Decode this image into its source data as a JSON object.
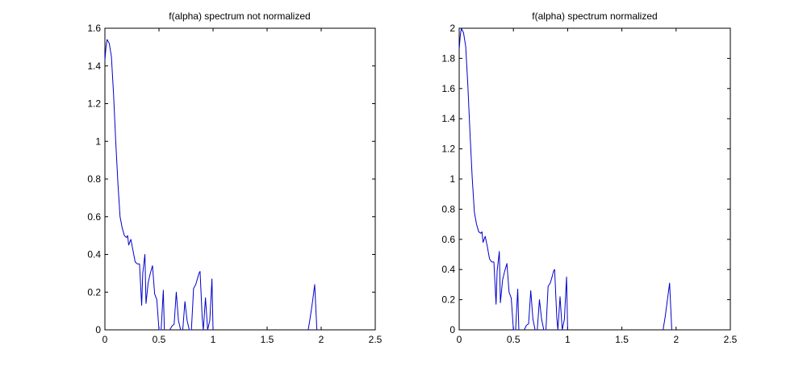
{
  "chart_data": [
    {
      "type": "line",
      "title": "f(alpha) spectrum not normalized",
      "xlabel": "",
      "ylabel": "",
      "xlim": [
        0,
        2.5
      ],
      "ylim": [
        0,
        1.6
      ],
      "xticks": [
        0,
        0.5,
        1,
        1.5,
        2,
        2.5
      ],
      "xtick_labels": [
        "0",
        "0.5",
        "1",
        "1.5",
        "2",
        "2.5"
      ],
      "yticks": [
        0,
        0.2,
        0.4,
        0.6,
        0.8,
        1,
        1.2,
        1.4,
        1.6
      ],
      "ytick_labels": [
        "0",
        "0.2",
        "0.4",
        "0.6",
        "0.8",
        "1",
        "1.2",
        "1.4",
        "1.6"
      ],
      "grid": false,
      "line_color": "#0000cc",
      "segments": [
        {
          "x": [
            0,
            0.01,
            0.02,
            0.04,
            0.06,
            0.08,
            0.1,
            0.12,
            0.14,
            0.16,
            0.18,
            0.2,
            0.21,
            0.22,
            0.24,
            0.26,
            0.28,
            0.3,
            0.32,
            0.34,
            0.35,
            0.37,
            0.38,
            0.4,
            0.42,
            0.44,
            0.46,
            0.48,
            0.5,
            0.52,
            0.54,
            0.55
          ],
          "y": [
            1.43,
            1.5,
            1.54,
            1.52,
            1.45,
            1.25,
            1.0,
            0.78,
            0.6,
            0.54,
            0.5,
            0.49,
            0.5,
            0.45,
            0.48,
            0.42,
            0.36,
            0.35,
            0.35,
            0.13,
            0.3,
            0.4,
            0.14,
            0.25,
            0.3,
            0.34,
            0.19,
            0.16,
            0.0,
            0.0,
            0.21,
            0.0
          ]
        },
        {
          "x": [
            0.6,
            0.62,
            0.64,
            0.66,
            0.68,
            0.7
          ],
          "y": [
            0.0,
            0.02,
            0.03,
            0.2,
            0.05,
            0.0
          ]
        },
        {
          "x": [
            0.72,
            0.74,
            0.76,
            0.78,
            0.8,
            0.82,
            0.84,
            0.86,
            0.87,
            0.88,
            0.9,
            0.91,
            0.93,
            0.95,
            0.97,
            0.99,
            1.0
          ],
          "y": [
            0.0,
            0.15,
            0.05,
            0.0,
            0.0,
            0.22,
            0.24,
            0.28,
            0.3,
            0.31,
            0.06,
            0.0,
            0.17,
            0.0,
            0.05,
            0.27,
            0.0
          ]
        },
        {
          "x": [
            1.88,
            1.9,
            1.92,
            1.94,
            1.96
          ],
          "y": [
            0.0,
            0.07,
            0.15,
            0.24,
            0.0
          ]
        }
      ]
    },
    {
      "type": "line",
      "title": "f(alpha) spectrum normalized",
      "xlabel": "",
      "ylabel": "",
      "xlim": [
        0,
        2.5
      ],
      "ylim": [
        0,
        2
      ],
      "xticks": [
        0,
        0.5,
        1,
        1.5,
        2,
        2.5
      ],
      "xtick_labels": [
        "0",
        "0.5",
        "1",
        "1.5",
        "2",
        "2.5"
      ],
      "yticks": [
        0,
        0.2,
        0.4,
        0.6,
        0.8,
        1,
        1.2,
        1.4,
        1.6,
        1.8,
        2
      ],
      "ytick_labels": [
        "0",
        "0.2",
        "0.4",
        "0.6",
        "0.8",
        "1",
        "1.2",
        "1.4",
        "1.6",
        "1.8",
        "2"
      ],
      "grid": false,
      "line_color": "#0000cc",
      "segments": [
        {
          "x": [
            0,
            0.01,
            0.02,
            0.04,
            0.06,
            0.08,
            0.1,
            0.12,
            0.14,
            0.16,
            0.18,
            0.2,
            0.21,
            0.22,
            0.24,
            0.26,
            0.28,
            0.3,
            0.32,
            0.34,
            0.35,
            0.37,
            0.38,
            0.4,
            0.42,
            0.44,
            0.46,
            0.48,
            0.5,
            0.52,
            0.54,
            0.55
          ],
          "y": [
            1.86,
            1.95,
            2.0,
            1.97,
            1.88,
            1.62,
            1.3,
            1.01,
            0.78,
            0.7,
            0.65,
            0.64,
            0.65,
            0.58,
            0.62,
            0.55,
            0.47,
            0.45,
            0.45,
            0.17,
            0.39,
            0.52,
            0.18,
            0.33,
            0.39,
            0.44,
            0.25,
            0.21,
            0.0,
            0.0,
            0.27,
            0.0
          ]
        },
        {
          "x": [
            0.6,
            0.62,
            0.64,
            0.66,
            0.68,
            0.7
          ],
          "y": [
            0.0,
            0.03,
            0.04,
            0.26,
            0.07,
            0.0
          ]
        },
        {
          "x": [
            0.72,
            0.74,
            0.76,
            0.78,
            0.8,
            0.82,
            0.84,
            0.86,
            0.87,
            0.88,
            0.9,
            0.91,
            0.93,
            0.95,
            0.97,
            0.99,
            1.0
          ],
          "y": [
            0.0,
            0.2,
            0.07,
            0.0,
            0.0,
            0.29,
            0.31,
            0.36,
            0.39,
            0.4,
            0.08,
            0.0,
            0.22,
            0.0,
            0.07,
            0.35,
            0.0
          ]
        },
        {
          "x": [
            1.88,
            1.9,
            1.92,
            1.94,
            1.96
          ],
          "y": [
            0.0,
            0.09,
            0.2,
            0.31,
            0.0
          ]
        }
      ]
    }
  ]
}
